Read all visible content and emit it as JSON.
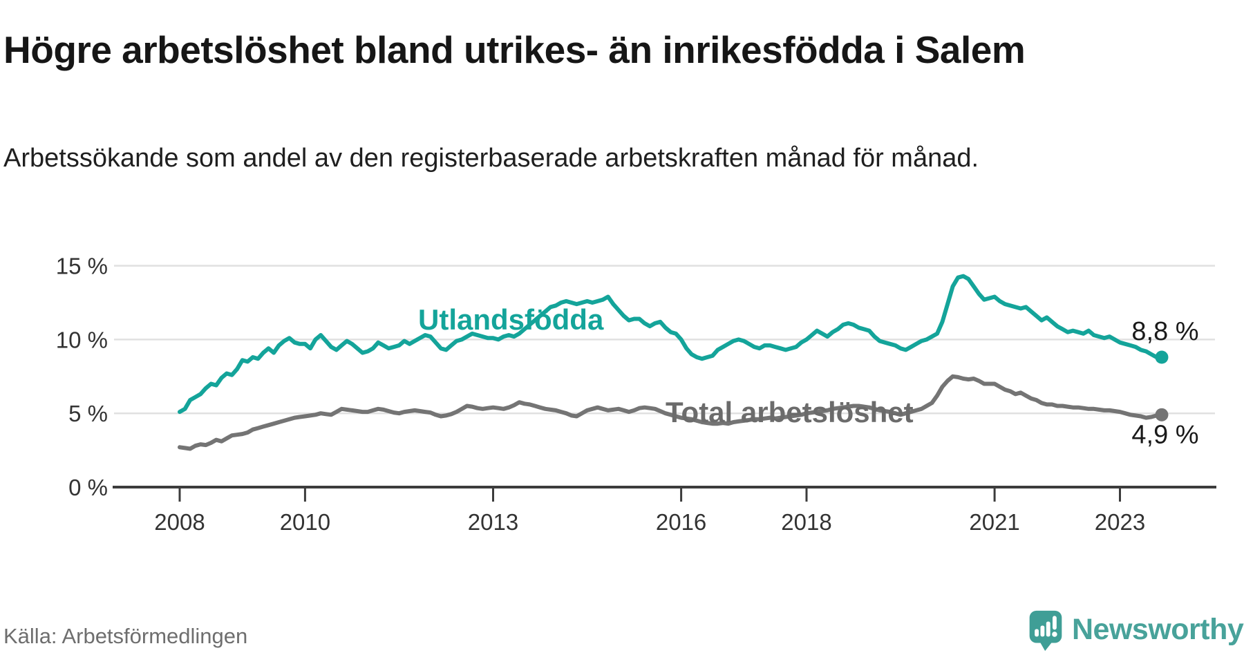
{
  "header": {
    "title": "Högre arbetslöshet bland utrikes- än inrikesfödda i Salem",
    "subtitle": "Arbetssökande som andel av den registerbaserade arbetskraften månad för månad."
  },
  "source": {
    "label": "Källa: Arbetsförmedlingen"
  },
  "branding": {
    "name": "Newsworthy"
  },
  "chart_data": {
    "type": "line",
    "unit": "%",
    "frequency": "monthly",
    "x_start_year": 2008,
    "x_start_month": 1,
    "x_end_year": 2023,
    "x_end_month": 9,
    "ylim": [
      0,
      16.5
    ],
    "grid": "horizontal",
    "legend_position": "inline-labels",
    "y_ticks": [
      {
        "value": 0,
        "label": "0 %"
      },
      {
        "value": 5,
        "label": "5 %"
      },
      {
        "value": 10,
        "label": "10 %"
      },
      {
        "value": 15,
        "label": "15 %"
      }
    ],
    "x_ticks": [
      {
        "value": 2008,
        "label": "2008"
      },
      {
        "value": 2010,
        "label": "2010"
      },
      {
        "value": 2013,
        "label": "2013"
      },
      {
        "value": 2016,
        "label": "2016"
      },
      {
        "value": 2018,
        "label": "2018"
      },
      {
        "value": 2021,
        "label": "2021"
      },
      {
        "value": 2023,
        "label": "2023"
      }
    ],
    "series": [
      {
        "name": "Utlandsfödda",
        "color": "#14a49a",
        "end_label": "8,8 %",
        "end_value": 8.8,
        "values": [
          5.1,
          5.3,
          5.9,
          6.1,
          6.3,
          6.7,
          7.0,
          6.9,
          7.4,
          7.7,
          7.6,
          8.0,
          8.6,
          8.5,
          8.8,
          8.7,
          9.1,
          9.4,
          9.1,
          9.6,
          9.9,
          10.1,
          9.8,
          9.7,
          9.7,
          9.4,
          10.0,
          10.3,
          9.9,
          9.5,
          9.3,
          9.6,
          9.9,
          9.7,
          9.4,
          9.1,
          9.2,
          9.4,
          9.8,
          9.6,
          9.4,
          9.5,
          9.6,
          9.9,
          9.7,
          9.9,
          10.1,
          10.3,
          10.2,
          9.8,
          9.4,
          9.3,
          9.6,
          9.9,
          10.0,
          10.2,
          10.4,
          10.3,
          10.2,
          10.1,
          10.1,
          10.0,
          10.2,
          10.3,
          10.2,
          10.4,
          10.7,
          11.0,
          11.3,
          11.6,
          11.9,
          12.2,
          12.3,
          12.5,
          12.6,
          12.5,
          12.4,
          12.5,
          12.6,
          12.5,
          12.6,
          12.7,
          12.9,
          12.4,
          12.0,
          11.6,
          11.3,
          11.4,
          11.4,
          11.1,
          10.9,
          11.1,
          11.2,
          10.8,
          10.5,
          10.4,
          10.0,
          9.4,
          9.0,
          8.8,
          8.7,
          8.8,
          8.9,
          9.3,
          9.5,
          9.7,
          9.9,
          10.0,
          9.9,
          9.7,
          9.5,
          9.4,
          9.6,
          9.6,
          9.5,
          9.4,
          9.3,
          9.4,
          9.5,
          9.8,
          10.0,
          10.3,
          10.6,
          10.4,
          10.2,
          10.5,
          10.7,
          11.0,
          11.1,
          11.0,
          10.8,
          10.7,
          10.6,
          10.2,
          9.9,
          9.8,
          9.7,
          9.6,
          9.4,
          9.3,
          9.5,
          9.7,
          9.9,
          10.0,
          10.2,
          10.4,
          11.2,
          12.4,
          13.6,
          14.2,
          14.3,
          14.1,
          13.6,
          13.1,
          12.7,
          12.8,
          12.9,
          12.6,
          12.4,
          12.3,
          12.2,
          12.1,
          12.2,
          11.9,
          11.6,
          11.3,
          11.5,
          11.2,
          10.9,
          10.7,
          10.5,
          10.6,
          10.5,
          10.4,
          10.6,
          10.3,
          10.2,
          10.1,
          10.2,
          10.0,
          9.8,
          9.7,
          9.6,
          9.5,
          9.3,
          9.2,
          9.0,
          8.8,
          8.8
        ]
      },
      {
        "name": "Total arbetslöshet",
        "color": "#747474",
        "end_label": "4,9 %",
        "end_value": 4.9,
        "values": [
          2.7,
          2.65,
          2.6,
          2.8,
          2.9,
          2.85,
          3.0,
          3.2,
          3.1,
          3.3,
          3.5,
          3.55,
          3.6,
          3.7,
          3.9,
          4.0,
          4.1,
          4.2,
          4.3,
          4.4,
          4.5,
          4.6,
          4.7,
          4.75,
          4.8,
          4.85,
          4.9,
          5.0,
          4.95,
          4.9,
          5.1,
          5.3,
          5.25,
          5.2,
          5.15,
          5.1,
          5.1,
          5.2,
          5.3,
          5.25,
          5.15,
          5.05,
          5.0,
          5.1,
          5.15,
          5.2,
          5.15,
          5.1,
          5.05,
          4.9,
          4.8,
          4.85,
          4.95,
          5.1,
          5.3,
          5.5,
          5.45,
          5.35,
          5.3,
          5.35,
          5.4,
          5.35,
          5.3,
          5.4,
          5.55,
          5.75,
          5.65,
          5.6,
          5.5,
          5.4,
          5.3,
          5.25,
          5.2,
          5.1,
          5.0,
          4.85,
          4.8,
          5.0,
          5.2,
          5.3,
          5.4,
          5.3,
          5.2,
          5.25,
          5.3,
          5.2,
          5.1,
          5.2,
          5.35,
          5.4,
          5.35,
          5.3,
          5.15,
          5.0,
          4.9,
          4.8,
          4.7,
          4.65,
          4.6,
          4.5,
          4.4,
          4.35,
          4.3,
          4.3,
          4.35,
          4.3,
          4.4,
          4.45,
          4.5,
          4.55,
          4.6,
          4.6,
          4.65,
          4.7,
          4.65,
          4.7,
          4.75,
          4.8,
          4.85,
          4.9,
          5.0,
          5.05,
          5.1,
          5.15,
          5.2,
          5.3,
          5.35,
          5.4,
          5.45,
          5.5,
          5.5,
          5.45,
          5.4,
          5.3,
          5.2,
          5.15,
          5.1,
          5.0,
          4.9,
          5.0,
          5.1,
          5.2,
          5.3,
          5.5,
          5.7,
          6.2,
          6.8,
          7.2,
          7.5,
          7.45,
          7.35,
          7.3,
          7.35,
          7.2,
          7.0,
          7.0,
          7.0,
          6.8,
          6.6,
          6.5,
          6.3,
          6.4,
          6.2,
          6.0,
          5.9,
          5.7,
          5.6,
          5.6,
          5.5,
          5.5,
          5.45,
          5.4,
          5.4,
          5.35,
          5.3,
          5.3,
          5.25,
          5.2,
          5.2,
          5.15,
          5.1,
          5.0,
          4.9,
          4.85,
          4.8,
          4.7,
          4.75,
          4.85,
          4.9
        ]
      }
    ]
  }
}
